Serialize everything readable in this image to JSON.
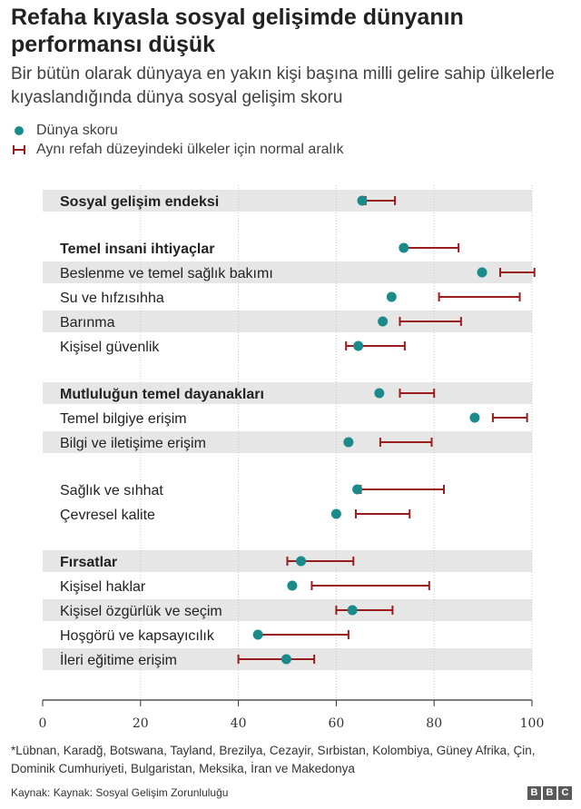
{
  "title": "Refaha kıyasla sosyal gelişimde dünyanın performansı düşük",
  "subtitle": "Bir bütün olarak dünyaya en yakın kişi başına milli gelire sahip ülkelerle kıyaslandığında dünya sosyal gelişim skoru",
  "legend": {
    "score_label": "Dünya skoru",
    "range_label": "Aynı refah düzeyindeki ülkeler için normal aralık"
  },
  "colors": {
    "dot": "#1a8a8a",
    "range": "#9b1c1f",
    "band": "#e6e6e6",
    "axis": "#333333"
  },
  "chart_data": {
    "type": "scatter",
    "xlim": [
      0,
      100
    ],
    "xticks": [
      0,
      20,
      40,
      60,
      80,
      100
    ],
    "rows": [
      {
        "label": "Sosyal gelişim endeksi",
        "header": true,
        "score": 65.3,
        "range": [
          66,
          72
        ],
        "band": true,
        "gap_before": false
      },
      {
        "label": "Temel insani ihtiyaçlar",
        "header": true,
        "score": 73.8,
        "range": [
          74,
          85
        ],
        "band": false,
        "gap_before": true
      },
      {
        "label": "Beslenme ve temel sağlık bakımı",
        "header": false,
        "score": 89.8,
        "range": [
          93.5,
          100.5
        ],
        "band": true,
        "gap_before": false
      },
      {
        "label": "Su ve hıfzısıhha",
        "header": false,
        "score": 71.3,
        "range": [
          81,
          97.5
        ],
        "band": false,
        "gap_before": false
      },
      {
        "label": "Barınma",
        "header": false,
        "score": 69.5,
        "range": [
          73,
          85.5
        ],
        "band": true,
        "gap_before": false
      },
      {
        "label": "Kişisel güvenlik",
        "header": false,
        "score": 64.5,
        "range": [
          62,
          74
        ],
        "band": false,
        "gap_before": false
      },
      {
        "label": "Mutluluğun temel dayanakları",
        "header": true,
        "score": 68.8,
        "range": [
          73,
          80
        ],
        "band": true,
        "gap_before": true
      },
      {
        "label": "Temel bilgiye erişim",
        "header": false,
        "score": 88.3,
        "range": [
          92,
          99
        ],
        "band": false,
        "gap_before": false
      },
      {
        "label": "Bilgi ve iletişime erişim",
        "header": false,
        "score": 62.5,
        "range": [
          69,
          79.5
        ],
        "band": true,
        "gap_before": false
      },
      {
        "label": "Sağlık ve sıhhat",
        "header": false,
        "score": 64.3,
        "range": [
          65,
          82
        ],
        "band": false,
        "gap_before": true
      },
      {
        "label": "Çevresel kalite",
        "header": false,
        "score": 60,
        "range": [
          64,
          75
        ],
        "band": false,
        "gap_before": false
      },
      {
        "label": "Fırsatlar",
        "header": true,
        "score": 52.8,
        "range": [
          50,
          63.5
        ],
        "band": true,
        "gap_before": true
      },
      {
        "label": "Kişisel haklar",
        "header": false,
        "score": 51,
        "range": [
          55,
          79
        ],
        "band": false,
        "gap_before": false
      },
      {
        "label": "Kişisel özgürlük ve seçim",
        "header": false,
        "score": 63.3,
        "range": [
          60,
          71.5
        ],
        "band": true,
        "gap_before": false
      },
      {
        "label": "Hoşgörü ve kapsayıcılık",
        "header": false,
        "score": 44,
        "range": [
          44,
          62.5
        ],
        "band": false,
        "gap_before": false
      },
      {
        "label": "İleri eğitime erişim",
        "header": false,
        "score": 49.8,
        "range": [
          40,
          55.5
        ],
        "band": true,
        "gap_before": false
      }
    ]
  },
  "footnote": "*Lübnan, Karadğ, Botswana, Tayland, Brezilya, Cezayir, Sırbistan, Kolombiya, Güney Afrika, Çin, Dominik Cumhuriyeti, Bulgaristan, Meksika, İran ve Makedonya",
  "source": "Kaynak: Kaynak: Sosyal Gelişim Zorunluluğu",
  "logo": [
    "B",
    "B",
    "C"
  ]
}
